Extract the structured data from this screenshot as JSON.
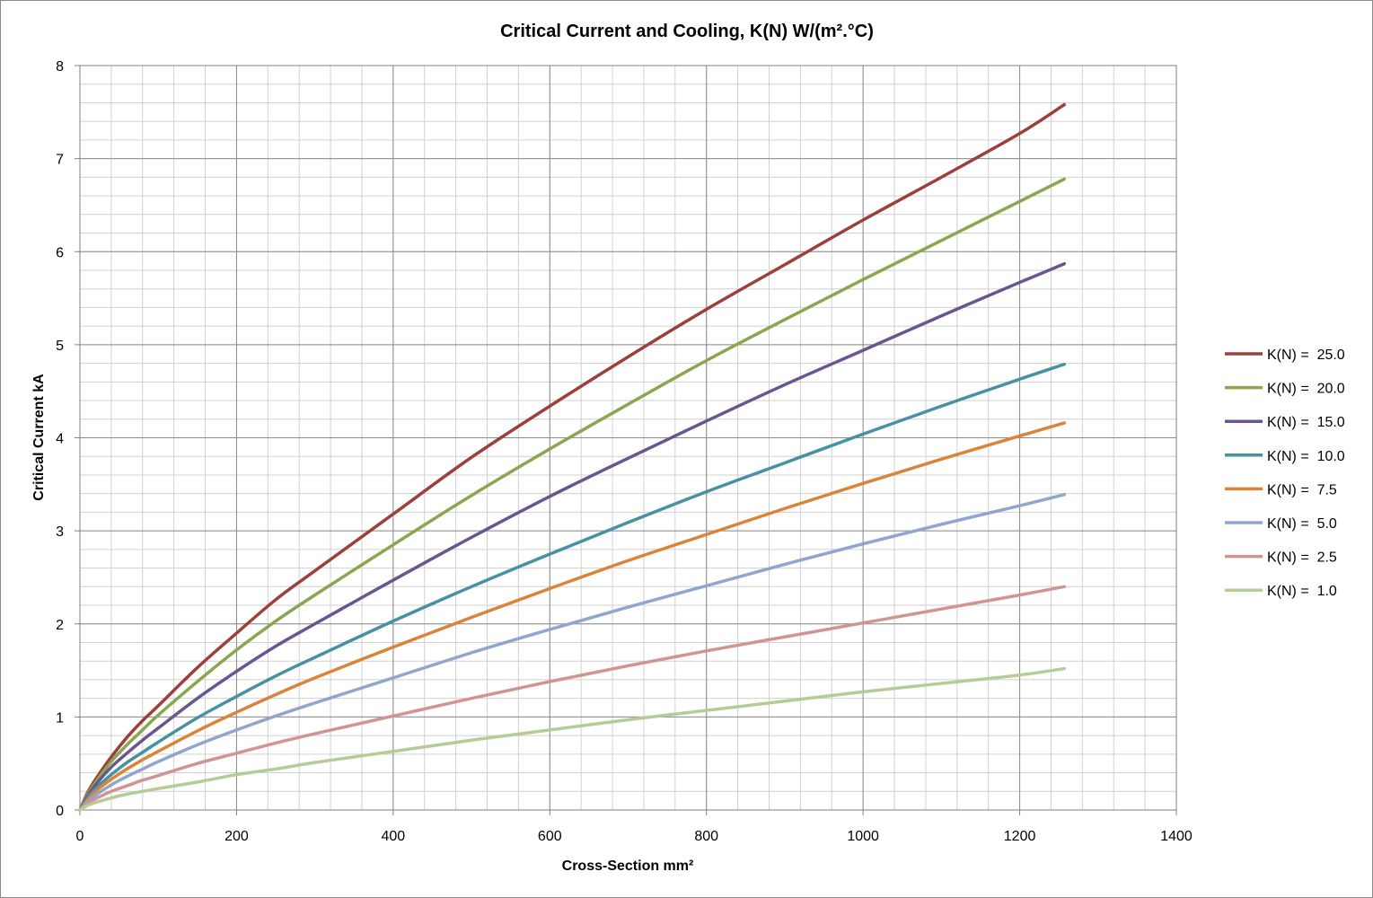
{
  "chart_data": {
    "type": "line",
    "title": "Critical Current and Cooling, K(N) W/(m².°C)",
    "xlabel": "Cross-Section mm²",
    "ylabel": "Critical Current kA",
    "xlim": [
      0,
      1400
    ],
    "ylim": [
      0,
      8
    ],
    "x_ticks": [
      "0",
      "200",
      "400",
      "600",
      "800",
      "1000",
      "1200",
      "1400"
    ],
    "y_ticks": [
      "0",
      "1",
      "2",
      "3",
      "4",
      "5",
      "6",
      "7",
      "8"
    ],
    "x_minor_step": 40,
    "y_minor_step": 0.2,
    "grid": true,
    "legend_position": "right",
    "x": [
      0,
      10,
      20,
      40,
      60,
      80,
      100,
      150,
      200,
      250,
      300,
      400,
      500,
      600,
      700,
      800,
      900,
      1000,
      1100,
      1200,
      1257
    ],
    "series": [
      {
        "name": "K(N) =  25.0",
        "color": "#9B403D",
        "values": [
          0,
          0.19,
          0.33,
          0.57,
          0.78,
          0.96,
          1.12,
          1.53,
          1.9,
          2.26,
          2.57,
          3.18,
          3.79,
          4.34,
          4.87,
          5.38,
          5.86,
          6.34,
          6.8,
          7.27,
          7.58
        ]
      },
      {
        "name": "K(N) =  20.0",
        "color": "#8AA64F",
        "values": [
          0,
          0.17,
          0.3,
          0.52,
          0.7,
          0.86,
          1.02,
          1.38,
          1.72,
          2.03,
          2.31,
          2.85,
          3.38,
          3.88,
          4.36,
          4.83,
          5.27,
          5.7,
          6.12,
          6.54,
          6.78
        ]
      },
      {
        "name": "K(N) =  15.0",
        "color": "#6B5590",
        "values": [
          0,
          0.15,
          0.27,
          0.46,
          0.61,
          0.75,
          0.88,
          1.2,
          1.49,
          1.76,
          2.0,
          2.47,
          2.93,
          3.37,
          3.78,
          4.18,
          4.57,
          4.94,
          5.31,
          5.67,
          5.87
        ]
      },
      {
        "name": "K(N) =  10.0",
        "color": "#4891A3",
        "values": [
          0,
          0.13,
          0.23,
          0.38,
          0.51,
          0.62,
          0.73,
          0.99,
          1.22,
          1.44,
          1.64,
          2.03,
          2.4,
          2.75,
          3.09,
          3.42,
          3.73,
          4.04,
          4.34,
          4.63,
          4.79
        ]
      },
      {
        "name": "K(N) =  7.5",
        "color": "#D98439",
        "values": [
          0,
          0.11,
          0.2,
          0.33,
          0.44,
          0.54,
          0.63,
          0.85,
          1.05,
          1.24,
          1.42,
          1.75,
          2.07,
          2.38,
          2.68,
          2.96,
          3.24,
          3.51,
          3.77,
          4.02,
          4.16
        ]
      },
      {
        "name": "K(N) =  5.0",
        "color": "#91A6CD",
        "values": [
          0,
          0.09,
          0.16,
          0.27,
          0.36,
          0.44,
          0.52,
          0.7,
          0.86,
          1.01,
          1.15,
          1.42,
          1.69,
          1.94,
          2.18,
          2.41,
          2.64,
          2.86,
          3.07,
          3.27,
          3.39
        ]
      },
      {
        "name": "K(N) =  2.5",
        "color": "#D09593",
        "values": [
          0,
          0.07,
          0.12,
          0.2,
          0.26,
          0.32,
          0.37,
          0.5,
          0.61,
          0.72,
          0.82,
          1.01,
          1.2,
          1.38,
          1.55,
          1.71,
          1.86,
          2.01,
          2.16,
          2.31,
          2.4
        ]
      },
      {
        "name": "K(N) =  1.0",
        "color": "#B5CD94",
        "values": [
          0,
          0.05,
          0.08,
          0.13,
          0.17,
          0.2,
          0.23,
          0.3,
          0.38,
          0.44,
          0.51,
          0.63,
          0.75,
          0.86,
          0.97,
          1.07,
          1.17,
          1.27,
          1.36,
          1.45,
          1.52
        ]
      }
    ]
  }
}
